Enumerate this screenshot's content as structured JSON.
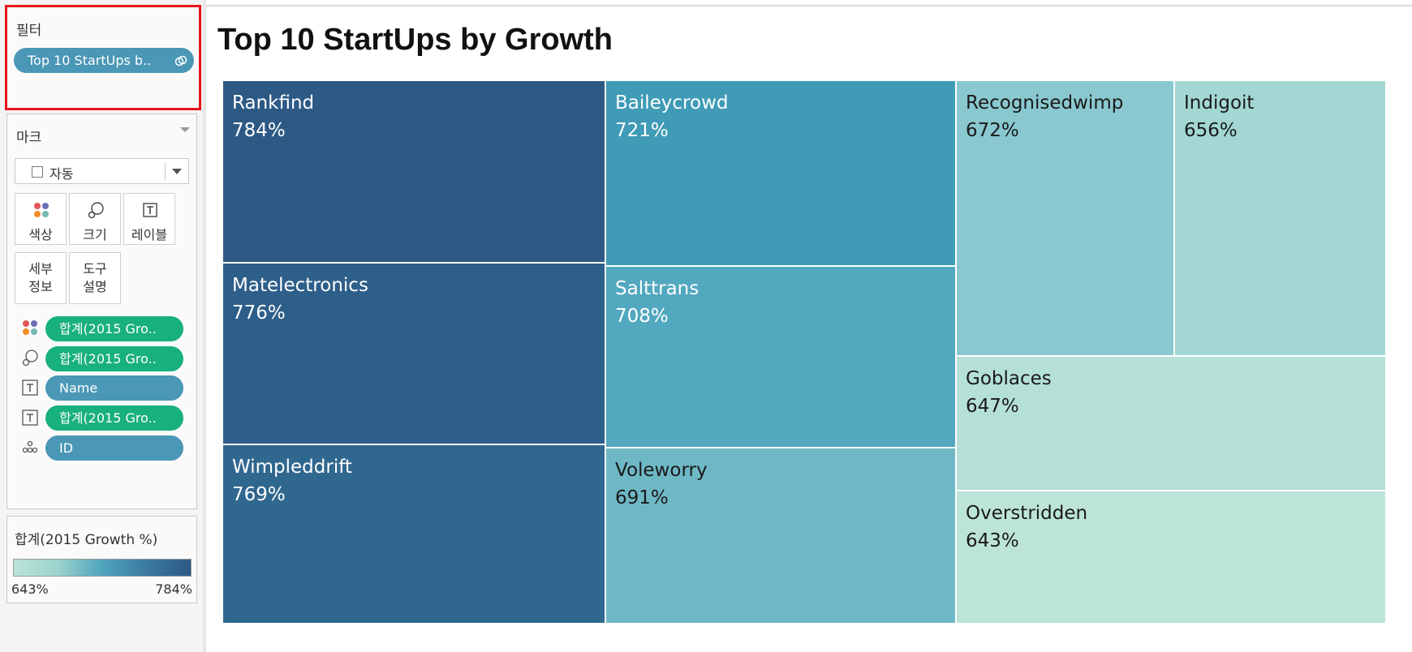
{
  "filters_card": {
    "title": "필터",
    "pill_label": "Top 10 StartUps b..",
    "pill_icon": "linked-icon"
  },
  "marks_card": {
    "title": "마크",
    "mark_type": "자동",
    "buttons": {
      "color": "색상",
      "size": "크기",
      "label": "레이블",
      "detail_1": "세부",
      "detail_2": "정보",
      "tooltip_1": "도구",
      "tooltip_2": "설명"
    },
    "shelves": [
      {
        "icon": "color-icon",
        "label": "합계(2015 Gro..",
        "color": "#19b07f"
      },
      {
        "icon": "size-icon",
        "label": "합계(2015 Gro..",
        "color": "#19b07f"
      },
      {
        "icon": "text-icon",
        "label": "Name",
        "color": "#4a97b6"
      },
      {
        "icon": "text-icon",
        "label": "합계(2015 Gro..",
        "color": "#19b07f"
      },
      {
        "icon": "detail-icon",
        "label": "ID",
        "color": "#4a97b6"
      }
    ]
  },
  "legend": {
    "title": "합계(2015 Growth %)",
    "min_label": "643%",
    "max_label": "784%",
    "colors": [
      "#bce4d8",
      "#2c5985"
    ]
  },
  "viz": {
    "title": "Top 10 StartUps by Growth"
  },
  "chart_data": {
    "type": "treemap",
    "title": "Top 10 StartUps by Growth",
    "items": [
      {
        "name": "Rankfind",
        "value": 784,
        "label": "784%",
        "color": "#2d5985"
      },
      {
        "name": "Matelectronics",
        "value": 776,
        "label": "776%",
        "color": "#2e5e8a"
      },
      {
        "name": "Wimpleddrift",
        "value": 769,
        "label": "769%",
        "color": "#30678f"
      },
      {
        "name": "Baileycrowd",
        "value": 721,
        "label": "721%",
        "color": "#3f9bb6"
      },
      {
        "name": "Salttrans",
        "value": 708,
        "label": "708%",
        "color": "#52a8be"
      },
      {
        "name": "Voleworry",
        "value": 691,
        "label": "691%",
        "color": "#6eb8c5"
      },
      {
        "name": "Recognisedwimp",
        "value": 672,
        "label": "672%",
        "color": "#8ac8d0"
      },
      {
        "name": "Indigoit",
        "value": 656,
        "label": "656%",
        "color": "#a2d7d3"
      },
      {
        "name": "Goblaces",
        "value": 647,
        "label": "647%",
        "color": "#b4e0d8"
      },
      {
        "name": "Overstridden",
        "value": 643,
        "label": "643%",
        "color": "#bce4d8"
      }
    ]
  }
}
